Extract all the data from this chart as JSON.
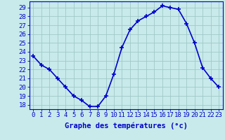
{
  "x": [
    0,
    1,
    2,
    3,
    4,
    5,
    6,
    7,
    8,
    9,
    10,
    11,
    12,
    13,
    14,
    15,
    16,
    17,
    18,
    19,
    20,
    21,
    22,
    23
  ],
  "y": [
    23.5,
    22.5,
    22.0,
    21.0,
    20.0,
    19.0,
    18.5,
    17.8,
    17.8,
    19.0,
    21.5,
    24.5,
    26.5,
    27.5,
    28.0,
    28.5,
    29.2,
    29.0,
    28.8,
    27.2,
    25.0,
    22.2,
    21.0,
    20.0
  ],
  "line_color": "#0000cc",
  "marker": "+",
  "marker_size": 4,
  "bg_color": "#c8eaea",
  "grid_color": "#a0c8c8",
  "xlabel": "Graphe des températures (°c)",
  "xlabel_fontsize": 7.5,
  "ylabel_ticks": [
    18,
    19,
    20,
    21,
    22,
    23,
    24,
    25,
    26,
    27,
    28,
    29
  ],
  "ylim": [
    17.5,
    29.7
  ],
  "xlim": [
    -0.5,
    23.5
  ],
  "xticks": [
    0,
    1,
    2,
    3,
    4,
    5,
    6,
    7,
    8,
    9,
    10,
    11,
    12,
    13,
    14,
    15,
    16,
    17,
    18,
    19,
    20,
    21,
    22,
    23
  ],
  "tick_fontsize": 6.5,
  "line_width": 1.2
}
